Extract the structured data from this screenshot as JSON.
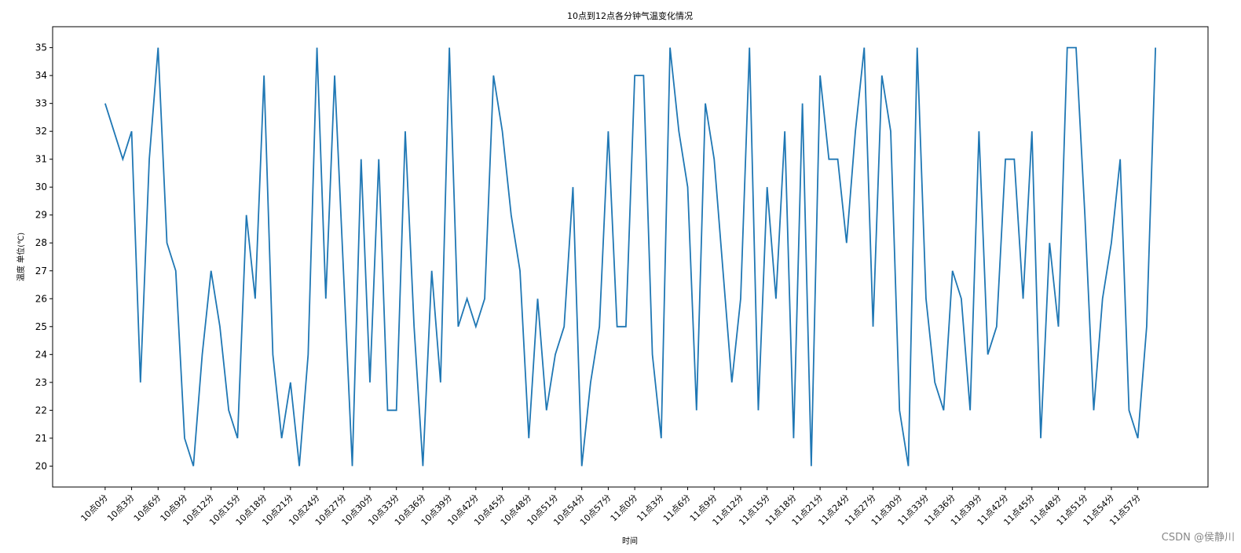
{
  "chart_data": {
    "type": "line",
    "title": "10点到12点各分钟气温变化情况",
    "x_label": "时间",
    "y_label": "温度 单位(℃)",
    "watermark": "CSDN @侯静川",
    "color": "#1f77b4",
    "categories": [
      "10点0分",
      null,
      null,
      "10点3分",
      null,
      null,
      "10点6分",
      null,
      null,
      "10点9分",
      null,
      null,
      "10点12分",
      null,
      null,
      "10点15分",
      null,
      null,
      "10点18分",
      null,
      null,
      "10点21分",
      null,
      null,
      "10点24分",
      null,
      null,
      "10点27分",
      null,
      null,
      "10点30分",
      null,
      null,
      "10点33分",
      null,
      null,
      "10点36分",
      null,
      null,
      "10点39分",
      null,
      null,
      "10点42分",
      null,
      null,
      "10点45分",
      null,
      null,
      "10点48分",
      null,
      null,
      "10点51分",
      null,
      null,
      "10点54分",
      null,
      null,
      "10点57分",
      null,
      null,
      "11点0分",
      null,
      null,
      "11点3分",
      null,
      null,
      "11点6分",
      null,
      null,
      "11点9分",
      null,
      null,
      "11点12分",
      null,
      null,
      "11点15分",
      null,
      null,
      "11点18分",
      null,
      null,
      "11点21分",
      null,
      null,
      "11点24分",
      null,
      null,
      "11点27分",
      null,
      null,
      "11点30分",
      null,
      null,
      "11点33分",
      null,
      null,
      "11点36分",
      null,
      null,
      "11点39分",
      null,
      null,
      "11点42分",
      null,
      null,
      "11点45分",
      null,
      null,
      "11点48分",
      null,
      null,
      "11点51分",
      null,
      null,
      "11点54分",
      null,
      null,
      "11点57分",
      null,
      null
    ],
    "values": [
      33,
      32,
      31,
      32,
      23,
      31,
      35,
      28,
      27,
      21,
      20,
      24,
      27,
      25,
      22,
      21,
      29,
      26,
      34,
      24,
      21,
      23,
      20,
      24,
      35,
      26,
      34,
      27,
      20,
      31,
      23,
      31,
      22,
      22,
      32,
      25,
      20,
      27,
      23,
      35,
      25,
      26,
      25,
      26,
      34,
      32,
      29,
      27,
      21,
      26,
      22,
      24,
      25,
      30,
      20,
      23,
      25,
      32,
      25,
      25,
      34,
      34,
      24,
      21,
      35,
      32,
      30,
      22,
      33,
      31,
      27,
      23,
      26,
      35,
      22,
      30,
      26,
      32,
      21,
      33,
      20,
      34,
      31,
      31,
      28,
      32,
      35,
      25,
      34,
      32,
      22,
      20,
      35,
      26,
      23,
      22,
      27,
      26,
      22,
      32,
      24,
      25,
      31,
      31,
      26,
      32,
      21,
      28,
      25,
      35,
      35,
      29,
      22,
      26,
      28,
      31,
      22,
      21,
      25,
      35
    ],
    "ylim": [
      19.25,
      35.75
    ],
    "yticks": [
      20,
      21,
      22,
      23,
      24,
      25,
      26,
      27,
      28,
      29,
      30,
      31,
      32,
      33,
      34,
      35
    ]
  }
}
